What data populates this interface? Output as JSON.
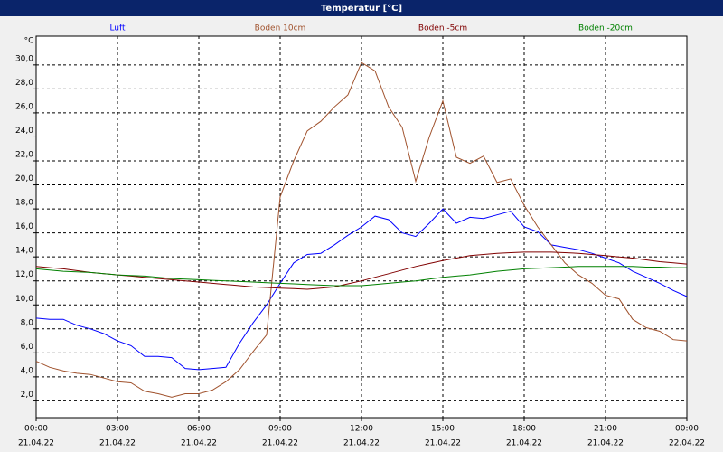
{
  "chart_data": {
    "type": "line",
    "title": "Temperatur [°C]",
    "y_label": "°C",
    "legend": "top",
    "grid": true,
    "x": [
      0,
      0.5,
      1,
      1.5,
      2,
      2.5,
      3,
      3.5,
      4,
      4.5,
      5,
      5.5,
      6,
      6.5,
      7,
      7.5,
      8,
      8.5,
      9,
      9.5,
      10,
      10.5,
      11,
      11.5,
      12,
      12.5,
      13,
      13.5,
      14,
      14.5,
      15,
      15.5,
      16,
      16.5,
      17,
      17.5,
      18,
      18.5,
      19,
      19.5,
      20,
      20.5,
      21,
      21.5,
      22,
      22.5,
      23,
      23.5,
      24
    ],
    "xlim": [
      0,
      24
    ],
    "xticks": [
      {
        "value": 0,
        "label": "00:00",
        "date": "21.04.22"
      },
      {
        "value": 3,
        "label": "03:00",
        "date": "21.04.22"
      },
      {
        "value": 6,
        "label": "06:00",
        "date": "21.04.22"
      },
      {
        "value": 9,
        "label": "09:00",
        "date": "21.04.22"
      },
      {
        "value": 12,
        "label": "12:00",
        "date": "21.04.22"
      },
      {
        "value": 15,
        "label": "15:00",
        "date": "21.04.22"
      },
      {
        "value": 18,
        "label": "18:00",
        "date": "21.04.22"
      },
      {
        "value": 21,
        "label": "21:00",
        "date": "21.04.22"
      },
      {
        "value": 24,
        "label": "00:00",
        "date": "22.04.22"
      }
    ],
    "ylim": [
      0.6,
      32.4
    ],
    "yticks": [
      {
        "value": 2,
        "label": "2,0"
      },
      {
        "value": 4,
        "label": "4,0"
      },
      {
        "value": 6,
        "label": "6,0"
      },
      {
        "value": 8,
        "label": "8,0"
      },
      {
        "value": 10,
        "label": "10,0"
      },
      {
        "value": 12,
        "label": "12,0"
      },
      {
        "value": 14,
        "label": "14,0"
      },
      {
        "value": 16,
        "label": "16,0"
      },
      {
        "value": 18,
        "label": "18,0"
      },
      {
        "value": 20,
        "label": "20,0"
      },
      {
        "value": 22,
        "label": "22,0"
      },
      {
        "value": 24,
        "label": "24,0"
      },
      {
        "value": 26,
        "label": "26,0"
      },
      {
        "value": 28,
        "label": "28,0"
      },
      {
        "value": 30,
        "label": "30,0"
      }
    ],
    "series": [
      {
        "name": "Luft",
        "color": "#0000ff",
        "values": [
          8.9,
          8.8,
          8.8,
          8.3,
          8.0,
          7.6,
          7.0,
          6.6,
          5.7,
          5.7,
          5.6,
          4.7,
          4.6,
          4.7,
          4.8,
          6.8,
          8.5,
          10.0,
          11.8,
          13.5,
          14.2,
          14.3,
          15.0,
          15.8,
          16.5,
          17.4,
          17.1,
          16.0,
          15.7,
          16.8,
          18.0,
          16.8,
          17.3,
          17.2,
          17.5,
          17.8,
          16.5,
          16.1,
          15.0,
          14.8,
          14.6,
          14.3,
          13.9,
          13.5,
          12.8,
          12.3,
          11.8,
          11.2,
          10.7
        ]
      },
      {
        "name": "Boden 10cm",
        "color": "#a0522d",
        "values": [
          5.3,
          4.8,
          4.5,
          4.3,
          4.2,
          3.9,
          3.6,
          3.5,
          2.8,
          2.6,
          2.3,
          2.6,
          2.6,
          2.9,
          3.6,
          4.6,
          6.1,
          7.5,
          19,
          22,
          24.5,
          25.3,
          26.5,
          27.5,
          30.2,
          29.5,
          26.5,
          24.8,
          20.3,
          24.0,
          27.0,
          22.3,
          21.8,
          22.4,
          20.2,
          20.5,
          18.3,
          16.5,
          15.0,
          13.5,
          12.5,
          11.8,
          10.8,
          10.5,
          8.8,
          8.1,
          7.8,
          7.1,
          7.0
        ]
      },
      {
        "name": "Boden -5cm",
        "color": "#800000",
        "values": [
          13.2,
          13.1,
          13.0,
          12.85,
          12.7,
          12.6,
          12.5,
          12.4,
          12.3,
          12.2,
          12.1,
          12.0,
          11.9,
          11.8,
          11.7,
          11.6,
          11.5,
          11.45,
          11.4,
          11.35,
          11.3,
          11.4,
          11.5,
          11.75,
          12.0,
          12.3,
          12.6,
          12.9,
          13.2,
          13.45,
          13.7,
          13.9,
          14.1,
          14.2,
          14.3,
          14.35,
          14.4,
          14.4,
          14.4,
          14.35,
          14.3,
          14.2,
          14.1,
          14.0,
          13.9,
          13.75,
          13.6,
          13.5,
          13.4
        ]
      },
      {
        "name": "Boden -20cm",
        "color": "#008000",
        "values": [
          13.0,
          12.9,
          12.8,
          12.75,
          12.7,
          12.6,
          12.5,
          12.45,
          12.4,
          12.3,
          12.2,
          12.15,
          12.1,
          12.05,
          12.0,
          11.95,
          11.9,
          11.85,
          11.8,
          11.75,
          11.7,
          11.65,
          11.6,
          11.6,
          11.6,
          11.7,
          11.8,
          11.9,
          12.0,
          12.15,
          12.3,
          12.4,
          12.5,
          12.65,
          12.8,
          12.9,
          13.0,
          13.05,
          13.1,
          13.15,
          13.2,
          13.2,
          13.2,
          13.2,
          13.2,
          13.15,
          13.15,
          13.1,
          13.1
        ]
      }
    ]
  }
}
